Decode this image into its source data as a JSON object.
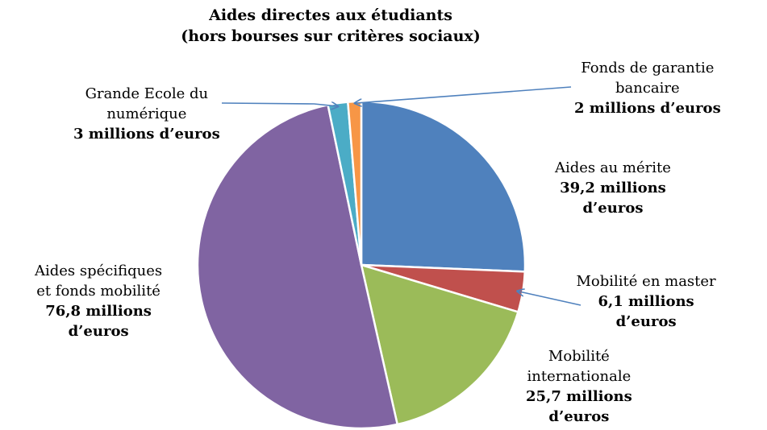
{
  "chart_data": {
    "type": "pie",
    "title": "Aides directes aux étudiants",
    "subtitle": "(hors bourses sur critères sociaux)",
    "categories": [
      "Aides au mérite",
      "Mobilité en master",
      "Mobilité internationale",
      "Aides spécifiques et fonds mobilité",
      "Grande Ecole du numérique",
      "Fonds de garantie bancaire"
    ],
    "values": [
      39.2,
      6.1,
      25.7,
      76.8,
      3,
      2
    ],
    "colors": [
      "#4F81BD",
      "#C0504D",
      "#9BBB59",
      "#8064A2",
      "#4BACC6",
      "#F79646"
    ],
    "labels": [
      {
        "name_lines": [
          "Aides au mérite"
        ],
        "value_lines": [
          "39,2 millions",
          "d’euros"
        ]
      },
      {
        "name_lines": [
          "Mobilité en master"
        ],
        "value_lines": [
          "6,1 millions",
          "d’euros"
        ]
      },
      {
        "name_lines": [
          "Mobilité",
          "internationale"
        ],
        "value_lines": [
          "25,7 millions",
          "d’euros"
        ]
      },
      {
        "name_lines": [
          "Aides spécifiques",
          "et fonds mobilité"
        ],
        "value_lines": [
          "76,8 millions",
          "d’euros"
        ]
      },
      {
        "name_lines": [
          "Grande Ecole du",
          "numérique"
        ],
        "value_lines": [
          "3 millions d’euros"
        ]
      },
      {
        "name_lines": [
          "Fonds de garantie",
          "bancaire"
        ],
        "value_lines": [
          "2 millions d’euros"
        ]
      }
    ],
    "start_angle": "12 o'clock",
    "direction": "clockwise"
  }
}
